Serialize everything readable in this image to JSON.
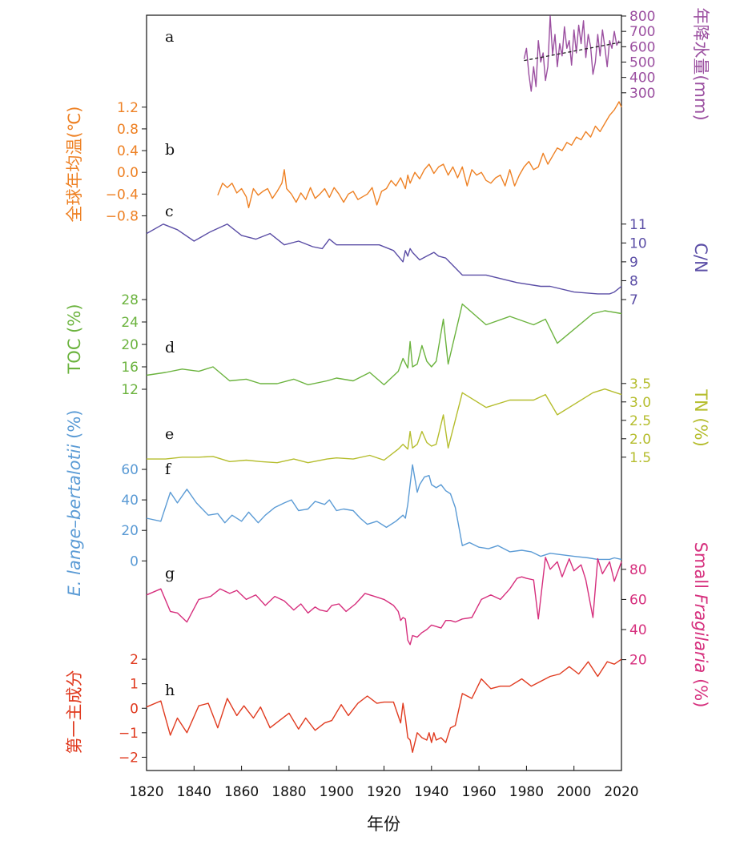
{
  "chart_data": {
    "type": "line",
    "xlabel": "年份",
    "xlim": [
      1820,
      2020
    ],
    "xticks": [
      1820,
      1840,
      1860,
      1880,
      1900,
      1920,
      1940,
      1960,
      1980,
      2000,
      2020
    ],
    "panels": [
      {
        "id": "a",
        "label": "a",
        "color": "#9b4fa0",
        "side": "right",
        "ylabel": "年降水量(mm)",
        "ylim": [
          200,
          800
        ],
        "yticks": [
          300,
          400,
          500,
          600,
          700,
          800
        ],
        "series": {
          "x": [
            1979,
            1980,
            1981,
            1982,
            1983,
            1984,
            1985,
            1986,
            1987,
            1988,
            1989,
            1990,
            1991,
            1992,
            1993,
            1994,
            1995,
            1996,
            1997,
            1998,
            1999,
            2000,
            2001,
            2002,
            2003,
            2004,
            2005,
            2006,
            2007,
            2008,
            2009,
            2010,
            2011,
            2012,
            2013,
            2014,
            2015,
            2016,
            2017,
            2018,
            2019
          ],
          "y": [
            520,
            590,
            420,
            310,
            470,
            340,
            640,
            500,
            560,
            380,
            470,
            800,
            550,
            680,
            470,
            620,
            540,
            730,
            590,
            640,
            480,
            710,
            560,
            740,
            620,
            770,
            530,
            680,
            600,
            420,
            500,
            680,
            540,
            710,
            600,
            470,
            640,
            590,
            700,
            610,
            640
          ]
        },
        "trend": {
          "x": [
            1979,
            2020
          ],
          "y": [
            510,
            630
          ],
          "style": "dashed"
        }
      },
      {
        "id": "b",
        "label": "b",
        "color": "#ee8124",
        "side": "left",
        "ylabel": "全球年均温(℃)",
        "ylim": [
          -1.0,
          1.3
        ],
        "yticks": [
          -0.8,
          -0.4,
          0.0,
          0.4,
          0.8,
          1.2
        ],
        "ytick_labels": [
          "−0.8",
          "−0.4",
          "0.0",
          "0.4",
          "0.8",
          "1.2"
        ],
        "series": {
          "x": [
            1850,
            1852,
            1854,
            1856,
            1858,
            1860,
            1862,
            1863,
            1865,
            1867,
            1869,
            1871,
            1873,
            1875,
            1877,
            1878,
            1879,
            1881,
            1883,
            1885,
            1887,
            1889,
            1891,
            1893,
            1895,
            1897,
            1899,
            1901,
            1903,
            1905,
            1907,
            1909,
            1911,
            1913,
            1915,
            1917,
            1919,
            1921,
            1923,
            1925,
            1927,
            1929,
            1930,
            1931,
            1933,
            1935,
            1937,
            1939,
            1941,
            1943,
            1945,
            1947,
            1949,
            1951,
            1953,
            1955,
            1957,
            1959,
            1961,
            1963,
            1965,
            1967,
            1969,
            1971,
            1973,
            1975,
            1977,
            1979,
            1981,
            1983,
            1985,
            1987,
            1989,
            1991,
            1993,
            1995,
            1997,
            1999,
            2001,
            2003,
            2005,
            2007,
            2009,
            2011,
            2013,
            2015,
            2017,
            2019,
            2020
          ],
          "y": [
            -0.42,
            -0.2,
            -0.28,
            -0.2,
            -0.38,
            -0.3,
            -0.45,
            -0.65,
            -0.3,
            -0.42,
            -0.35,
            -0.3,
            -0.48,
            -0.35,
            -0.2,
            0.05,
            -0.3,
            -0.4,
            -0.55,
            -0.38,
            -0.5,
            -0.28,
            -0.48,
            -0.4,
            -0.3,
            -0.46,
            -0.28,
            -0.4,
            -0.55,
            -0.4,
            -0.35,
            -0.5,
            -0.45,
            -0.4,
            -0.28,
            -0.6,
            -0.35,
            -0.3,
            -0.15,
            -0.25,
            -0.1,
            -0.3,
            -0.05,
            -0.2,
            0.0,
            -0.12,
            0.05,
            0.15,
            -0.02,
            0.1,
            0.15,
            -0.05,
            0.1,
            -0.1,
            0.1,
            -0.25,
            0.05,
            -0.05,
            0.0,
            -0.15,
            -0.2,
            -0.1,
            -0.05,
            -0.25,
            0.05,
            -0.25,
            -0.05,
            0.1,
            0.2,
            0.05,
            0.1,
            0.35,
            0.15,
            0.3,
            0.45,
            0.4,
            0.55,
            0.5,
            0.65,
            0.6,
            0.75,
            0.65,
            0.85,
            0.75,
            0.9,
            1.05,
            1.15,
            1.3,
            1.2
          ]
        }
      },
      {
        "id": "c",
        "label": "c",
        "color": "#5b4ea6",
        "side": "right",
        "ylabel": "C/N",
        "ylim": [
          7,
          11.5
        ],
        "yticks": [
          7,
          8,
          9,
          10,
          11
        ],
        "series": {
          "x": [
            1820,
            1827,
            1833,
            1840,
            1847,
            1854,
            1860,
            1866,
            1872,
            1878,
            1884,
            1890,
            1894,
            1897,
            1900,
            1910,
            1918,
            1924,
            1928,
            1929,
            1930,
            1931,
            1932,
            1935,
            1938,
            1941,
            1943,
            1946,
            1953,
            1963,
            1976,
            1986,
            1990,
            2000,
            2010,
            2015,
            2017,
            2020
          ],
          "y": [
            10.5,
            11,
            10.7,
            10.1,
            10.6,
            11,
            10.4,
            10.2,
            10.5,
            9.9,
            10.1,
            9.8,
            9.7,
            10.2,
            9.9,
            9.9,
            9.9,
            9.6,
            9.0,
            9.6,
            9.3,
            9.7,
            9.5,
            9.1,
            9.3,
            9.5,
            9.3,
            9.2,
            8.3,
            8.3,
            7.9,
            7.7,
            7.7,
            7.4,
            7.3,
            7.3,
            7.4,
            7.7
          ]
        }
      },
      {
        "id": "d",
        "label": "d",
        "color": "#6bb33e",
        "side": "left",
        "ylabel": "TOC (%)",
        "ylim": [
          11,
          30
        ],
        "yticks": [
          12,
          16,
          20,
          24,
          28
        ],
        "series": {
          "x": [
            1820,
            1828,
            1835,
            1842,
            1848,
            1855,
            1862,
            1868,
            1875,
            1882,
            1888,
            1896,
            1900,
            1907,
            1914,
            1920,
            1926,
            1928,
            1930,
            1931,
            1932,
            1934,
            1936,
            1938,
            1940,
            1942,
            1945,
            1947,
            1953,
            1963,
            1973,
            1983,
            1988,
            1993,
            2008,
            2013,
            2020
          ],
          "y": [
            14.5,
            15,
            15.6,
            15.2,
            16,
            13.5,
            13.8,
            13,
            13,
            13.8,
            12.8,
            13.5,
            14,
            13.5,
            15,
            12.8,
            15.2,
            17.5,
            15.8,
            20.5,
            16,
            16.5,
            19.8,
            17,
            16,
            17,
            24.5,
            16.5,
            27.2,
            23.5,
            25,
            23.5,
            24.5,
            20.2,
            25.5,
            26,
            25.5
          ]
        }
      },
      {
        "id": "e",
        "label": "e",
        "color": "#b5bd2d",
        "side": "right",
        "ylabel": "TN (%)",
        "ylim": [
          1.3,
          3.8
        ],
        "yticks": [
          1.5,
          2.0,
          2.5,
          3.0,
          3.5
        ],
        "ytick_labels": [
          "1.5",
          "2.0",
          "2.5",
          "3.0",
          "3.5"
        ],
        "series": {
          "x": [
            1820,
            1828,
            1835,
            1842,
            1848,
            1855,
            1862,
            1868,
            1875,
            1882,
            1888,
            1896,
            1900,
            1907,
            1914,
            1920,
            1926,
            1928,
            1930,
            1931,
            1932,
            1934,
            1936,
            1938,
            1940,
            1942,
            1945,
            1947,
            1953,
            1963,
            1973,
            1983,
            1988,
            1993,
            2008,
            2013,
            2020
          ],
          "y": [
            1.45,
            1.45,
            1.5,
            1.5,
            1.52,
            1.38,
            1.42,
            1.38,
            1.35,
            1.45,
            1.35,
            1.45,
            1.48,
            1.45,
            1.55,
            1.42,
            1.72,
            1.85,
            1.72,
            2.2,
            1.75,
            1.85,
            2.2,
            1.9,
            1.8,
            1.85,
            2.65,
            1.75,
            3.25,
            2.85,
            3.05,
            3.05,
            3.2,
            2.65,
            3.25,
            3.35,
            3.2
          ]
        }
      },
      {
        "id": "f",
        "label": "f",
        "color": "#5b9bd5",
        "side": "left",
        "ylabel_italic": "E. lange–bertalotii",
        "ylabel": " (%)",
        "ylim": [
          -3,
          70
        ],
        "yticks": [
          0,
          20,
          40,
          60
        ],
        "series": {
          "x": [
            1820,
            1826,
            1830,
            1833,
            1837,
            1841,
            1846,
            1850,
            1853,
            1856,
            1860,
            1863,
            1867,
            1870,
            1874,
            1878,
            1881,
            1884,
            1888,
            1891,
            1895,
            1897,
            1900,
            1903,
            1907,
            1910,
            1913,
            1917,
            1921,
            1925,
            1928,
            1929,
            1930,
            1931,
            1932,
            1934,
            1935,
            1937,
            1939,
            1940,
            1942,
            1944,
            1946,
            1948,
            1950,
            1953,
            1956,
            1960,
            1964,
            1968,
            1973,
            1978,
            1982,
            1986,
            1990,
            1995,
            2000,
            2006,
            2010,
            2015,
            2017,
            2020
          ],
          "y": [
            28,
            26,
            45,
            38,
            47,
            38,
            30,
            31,
            25,
            30,
            26,
            32,
            25,
            30,
            35,
            38,
            40,
            33,
            34,
            39,
            37,
            40,
            33,
            34,
            33,
            28,
            24,
            26,
            22,
            26,
            30,
            28,
            37,
            50,
            63,
            45,
            50,
            55,
            56,
            50,
            48,
            50,
            46,
            44,
            35,
            10,
            12,
            9,
            8,
            10,
            6,
            7,
            6,
            3,
            5,
            4,
            3,
            2,
            1,
            1,
            2,
            1
          ]
        }
      },
      {
        "id": "g",
        "label": "g",
        "color": "#d62f7d",
        "side": "right",
        "ylabel_prefix": "Small ",
        "ylabel_italic": "Fragilaria",
        "ylabel": " (%)",
        "ylim": [
          15,
          90
        ],
        "yticks": [
          20,
          40,
          60,
          80
        ],
        "series": {
          "x": [
            1820,
            1826,
            1830,
            1833,
            1837,
            1842,
            1847,
            1851,
            1855,
            1858,
            1862,
            1866,
            1870,
            1874,
            1878,
            1882,
            1885,
            1888,
            1891,
            1893,
            1896,
            1898,
            1901,
            1904,
            1908,
            1912,
            1916,
            1920,
            1924,
            1926,
            1927,
            1928,
            1929,
            1930,
            1931,
            1932,
            1934,
            1936,
            1938,
            1940,
            1942,
            1944,
            1946,
            1948,
            1950,
            1953,
            1957,
            1961,
            1965,
            1969,
            1973,
            1976,
            1978,
            1980,
            1983,
            1985,
            1988,
            1990,
            1993,
            1995,
            1998,
            2000,
            2003,
            2005,
            2008,
            2010,
            2012,
            2015,
            2017,
            2020
          ],
          "y": [
            63,
            67,
            52,
            51,
            45,
            60,
            62,
            67,
            64,
            66,
            60,
            63,
            56,
            62,
            59,
            53,
            57,
            51,
            55,
            53,
            52,
            56,
            57,
            52,
            57,
            64,
            62,
            60,
            56,
            52,
            46,
            48,
            47,
            33,
            30,
            36,
            35,
            38,
            40,
            43,
            42,
            41,
            46,
            46,
            45,
            47,
            48,
            60,
            63,
            60,
            67,
            74,
            75,
            74,
            73,
            47,
            88,
            80,
            85,
            75,
            87,
            79,
            83,
            73,
            48,
            87,
            77,
            85,
            72,
            85
          ]
        }
      },
      {
        "id": "h",
        "label": "h",
        "color": "#e03a1f",
        "side": "left",
        "ylabel": "第一主成分",
        "ylim": [
          -2.15,
          2.2
        ],
        "yticks": [
          -2,
          -1,
          0,
          1,
          2
        ],
        "ytick_labels": [
          "−2",
          "−1",
          "0",
          "1",
          "2"
        ],
        "series": {
          "x": [
            1820,
            1826,
            1830,
            1833,
            1837,
            1842,
            1846,
            1850,
            1854,
            1858,
            1861,
            1865,
            1868,
            1872,
            1876,
            1880,
            1884,
            1887,
            1891,
            1895,
            1898,
            1902,
            1905,
            1909,
            1913,
            1917,
            1920,
            1924,
            1927,
            1928,
            1929,
            1930,
            1931,
            1932,
            1934,
            1936,
            1938,
            1939,
            1940,
            1941,
            1942,
            1944,
            1946,
            1948,
            1950,
            1953,
            1957,
            1961,
            1965,
            1969,
            1973,
            1978,
            1982,
            1986,
            1990,
            1994,
            1998,
            2002,
            2006,
            2010,
            2014,
            2017,
            2020
          ],
          "y": [
            0.05,
            0.3,
            -1.1,
            -0.4,
            -1.0,
            0.1,
            0.2,
            -0.8,
            0.4,
            -0.3,
            0.1,
            -0.4,
            0.05,
            -0.8,
            -0.5,
            -0.2,
            -0.85,
            -0.4,
            -0.9,
            -0.6,
            -0.5,
            0.15,
            -0.3,
            0.2,
            0.5,
            0.2,
            0.25,
            0.25,
            -0.6,
            0.2,
            -0.4,
            -1.2,
            -1.3,
            -1.8,
            -1.0,
            -1.2,
            -1.3,
            -1.0,
            -1.4,
            -1.0,
            -1.3,
            -1.2,
            -1.4,
            -0.8,
            -0.7,
            0.6,
            0.4,
            1.2,
            0.8,
            0.9,
            0.9,
            1.2,
            0.9,
            1.1,
            1.3,
            1.4,
            1.7,
            1.4,
            1.9,
            1.3,
            1.9,
            1.8,
            2.0
          ]
        }
      }
    ]
  }
}
